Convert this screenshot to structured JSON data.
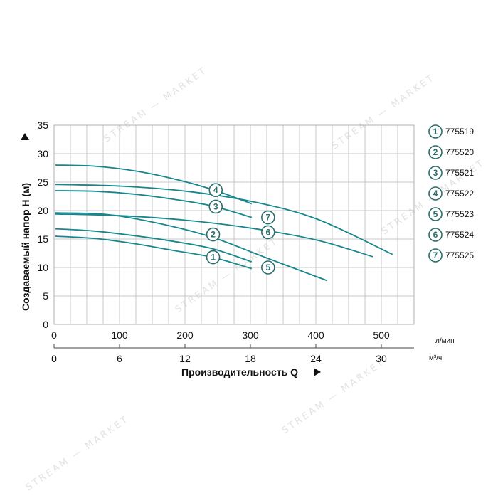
{
  "chart_data": {
    "type": "line",
    "ylabel": "Создаваемый напор H (м)",
    "xlabel": "Производительность Q",
    "x_unit_primary": "л/мин",
    "x_unit_secondary": "м³/ч",
    "xlim": [
      0,
      550
    ],
    "ylim": [
      0,
      35
    ],
    "x_ticks": [
      0,
      100,
      200,
      300,
      400,
      500
    ],
    "x2_ticks": [
      0,
      6,
      12,
      18,
      24,
      30
    ],
    "y_ticks": [
      0,
      5,
      10,
      15,
      20,
      25,
      30,
      35
    ],
    "grid": true,
    "legend_position": "right",
    "line_color": "#17878e",
    "series": [
      {
        "id": "1",
        "name": "775519",
        "x": [
          0,
          60,
          120,
          180,
          240,
          300
        ],
        "y": [
          15.5,
          15.1,
          14.2,
          13.0,
          11.8,
          9.8
        ]
      },
      {
        "id": "2",
        "name": "775520",
        "x": [
          0,
          60,
          120,
          180,
          240,
          300
        ],
        "y": [
          16.8,
          16.4,
          15.6,
          14.6,
          13.3,
          11.0
        ]
      },
      {
        "id": "3",
        "name": "775521",
        "x": [
          0,
          60,
          120,
          180,
          240,
          300
        ],
        "y": [
          23.5,
          23.4,
          22.9,
          22.0,
          20.8,
          18.8
        ]
      },
      {
        "id": "4",
        "name": "775522",
        "x": [
          0,
          60,
          120,
          180,
          240,
          300
        ],
        "y": [
          28.0,
          27.8,
          27.0,
          25.6,
          23.7,
          21.2
        ]
      },
      {
        "id": "5",
        "name": "775523",
        "x": [
          0,
          80,
          160,
          240,
          320,
          415
        ],
        "y": [
          19.6,
          19.3,
          17.7,
          15.3,
          11.8,
          7.7
        ]
      },
      {
        "id": "6",
        "name": "775524",
        "x": [
          0,
          100,
          200,
          300,
          400,
          485
        ],
        "y": [
          19.4,
          19.1,
          18.3,
          16.9,
          14.8,
          11.9
        ]
      },
      {
        "id": "7",
        "name": "775525",
        "x": [
          0,
          100,
          200,
          300,
          400,
          515
        ],
        "y": [
          24.6,
          24.3,
          23.4,
          21.6,
          18.5,
          12.3
        ]
      }
    ],
    "markers": [
      {
        "id": "4",
        "x": 247,
        "y": 23.6
      },
      {
        "id": "3",
        "x": 247,
        "y": 20.7
      },
      {
        "id": "7",
        "x": 327,
        "y": 18.8
      },
      {
        "id": "6",
        "x": 327,
        "y": 16.2
      },
      {
        "id": "2",
        "x": 243,
        "y": 15.8
      },
      {
        "id": "1",
        "x": 243,
        "y": 11.8
      },
      {
        "id": "5",
        "x": 327,
        "y": 10.0
      }
    ]
  },
  "watermark": "STREAM — MARKET"
}
